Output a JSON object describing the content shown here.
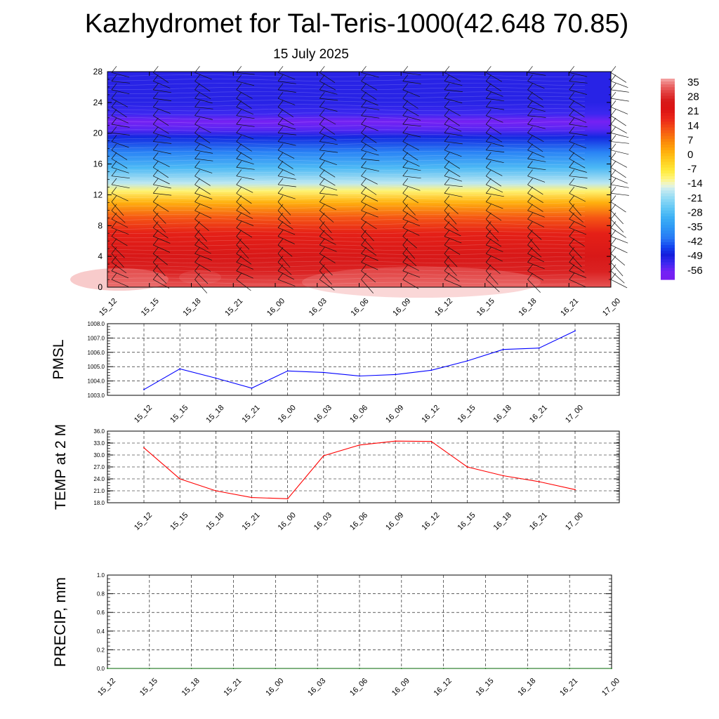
{
  "header": {
    "title": "Kazhydromet for Tal-Teris-1000(42.648 70.85)",
    "subtitle": "15 July 2025"
  },
  "colors": {
    "pmsl_line": "#0000ff",
    "temp_line": "#ff0000",
    "precip_line": "#006400"
  },
  "chart_data": [
    {
      "type": "heatmap",
      "name": "cross-section",
      "y_ticks": [
        "0",
        "4",
        "8",
        "12",
        "16",
        "20",
        "24",
        "28"
      ],
      "ylim": [
        0,
        28
      ],
      "x_ticks": [
        "15_12",
        "15_15",
        "15_18",
        "15_21",
        "16_00",
        "16_03",
        "16_06",
        "16_09",
        "16_12",
        "16_15",
        "16_18",
        "16_21",
        "17_00"
      ],
      "colorbar_labels": [
        "35",
        "28",
        "21",
        "14",
        "7",
        "0",
        "-7",
        "-14",
        "-21",
        "-28",
        "-35",
        "-42",
        "-49",
        "-56"
      ],
      "colorbar_range": [
        -60,
        38
      ],
      "level_bands": [
        {
          "z": 0,
          "value": 33
        },
        {
          "z": 2,
          "value": 28
        },
        {
          "z": 4,
          "value": 26
        },
        {
          "z": 7,
          "value": 20
        },
        {
          "z": 9,
          "value": 13
        },
        {
          "z": 11,
          "value": 2
        },
        {
          "z": 12.5,
          "value": -10
        },
        {
          "z": 13.5,
          "value": -17
        },
        {
          "z": 15.5,
          "value": -28
        },
        {
          "z": 17.5,
          "value": -38
        },
        {
          "z": 19.5,
          "value": -47
        },
        {
          "z": 20.5,
          "value": -54
        },
        {
          "z": 21.5,
          "value": -58
        },
        {
          "z": 22.5,
          "value": -52
        },
        {
          "z": 24,
          "value": -50
        },
        {
          "z": 28,
          "value": -50
        }
      ]
    },
    {
      "type": "line",
      "name": "PMSL",
      "ylabel": "PMSL",
      "ylim": [
        1003.0,
        1008.0
      ],
      "y_ticks": [
        "1003.0",
        "1004.0",
        "1005.0",
        "1006.0",
        "1007.0",
        "1008.0"
      ],
      "x_ticks": [
        "15_12",
        "15_15",
        "15_18",
        "15_21",
        "16_00",
        "16_03",
        "16_06",
        "16_09",
        "16_12",
        "16_15",
        "16_18",
        "16_21",
        "17_00"
      ],
      "values": [
        1003.4,
        1004.85,
        1004.2,
        1003.5,
        1004.7,
        1004.6,
        1004.35,
        1004.45,
        1004.75,
        1005.4,
        1006.2,
        1006.3,
        1007.5
      ]
    },
    {
      "type": "line",
      "name": "TEMP",
      "ylabel": "TEMP at 2 M",
      "ylim": [
        18.0,
        36.0
      ],
      "y_ticks": [
        "18.0",
        "21.0",
        "24.0",
        "27.0",
        "30.0",
        "33.0",
        "36.0"
      ],
      "x_ticks": [
        "15_12",
        "15_15",
        "15_18",
        "15_21",
        "16_00",
        "16_03",
        "16_06",
        "16_09",
        "16_12",
        "16_15",
        "16_18",
        "16_21",
        "17_00"
      ],
      "values": [
        31.8,
        24.0,
        21.0,
        19.3,
        19.0,
        29.8,
        32.5,
        33.5,
        33.4,
        27.0,
        24.8,
        23.3,
        21.3
      ]
    },
    {
      "type": "line",
      "name": "PRECIP",
      "ylabel": "PRECIP, mm",
      "ylim": [
        0.0,
        1.0
      ],
      "y_ticks": [
        "0.0",
        "0.2",
        "0.4",
        "0.6",
        "0.8",
        "1.0"
      ],
      "x_ticks": [
        "15_12",
        "15_15",
        "15_18",
        "15_21",
        "16_00",
        "16_03",
        "16_06",
        "16_09",
        "16_12",
        "16_15",
        "16_18",
        "16_21",
        "17_00"
      ],
      "values": [
        0,
        0,
        0,
        0,
        0,
        0,
        0,
        0,
        0,
        0,
        0,
        0,
        0
      ]
    }
  ]
}
